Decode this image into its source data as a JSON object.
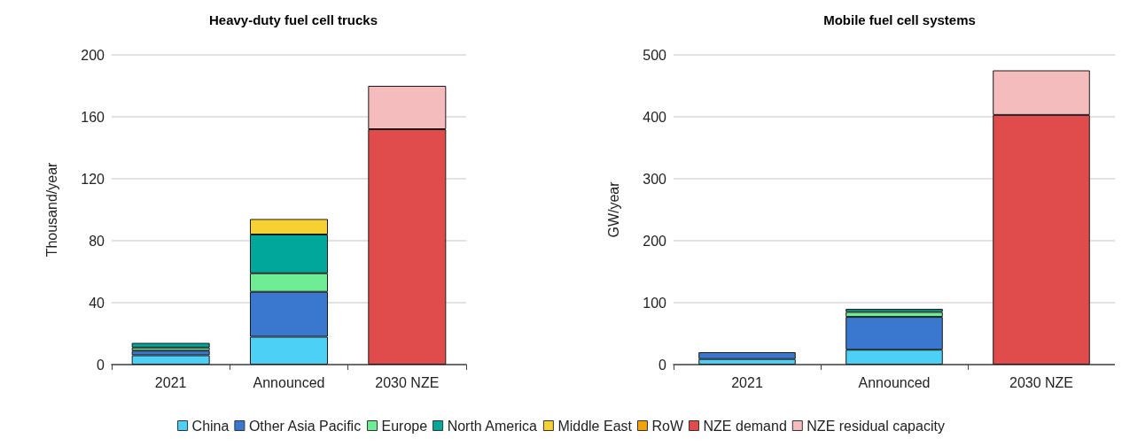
{
  "chart_data": [
    {
      "type": "bar",
      "title": "Heavy-duty fuel cell trucks",
      "ylabel": "Thousand/year",
      "categories": [
        "2021",
        "Announced",
        "2030 NZE"
      ],
      "stacked": true,
      "ylim": [
        0,
        200
      ],
      "yticks": [
        0,
        40,
        80,
        120,
        160,
        200
      ],
      "grid": "y",
      "legend": "bottom",
      "series": [
        {
          "name": "China",
          "color": "#4dd0f5",
          "values": [
            6,
            18,
            null
          ]
        },
        {
          "name": "Other Asia Pacific",
          "color": "#3a78d0",
          "values": [
            3,
            29,
            null
          ]
        },
        {
          "name": "Europe",
          "color": "#6fed95",
          "values": [
            2,
            12,
            null
          ]
        },
        {
          "name": "North America",
          "color": "#00a79a",
          "values": [
            3,
            25,
            null
          ]
        },
        {
          "name": "Middle East",
          "color": "#f7d031",
          "values": [
            null,
            10,
            null
          ]
        },
        {
          "name": "RoW",
          "color": "#f0a30a",
          "values": [
            null,
            null,
            null
          ]
        },
        {
          "name": "NZE demand",
          "color": "#e04b4b",
          "values": [
            null,
            null,
            152
          ]
        },
        {
          "name": "NZE residual capacity",
          "color": "#f4bcbc",
          "values": [
            null,
            null,
            28
          ]
        }
      ]
    },
    {
      "type": "bar",
      "title": "Mobile fuel cell systems",
      "ylabel": "GW/year",
      "categories": [
        "2021",
        "Announced",
        "2030 NZE"
      ],
      "stacked": true,
      "ylim": [
        0,
        500
      ],
      "yticks": [
        0,
        100,
        200,
        300,
        400,
        500
      ],
      "grid": "y",
      "legend": "bottom",
      "series": [
        {
          "name": "China",
          "color": "#4dd0f5",
          "values": [
            9,
            24,
            null
          ]
        },
        {
          "name": "Other Asia Pacific",
          "color": "#3a78d0",
          "values": [
            11,
            53,
            null
          ]
        },
        {
          "name": "Europe",
          "color": "#6fed95",
          "values": [
            null,
            8,
            null
          ]
        },
        {
          "name": "North America",
          "color": "#00a79a",
          "values": [
            null,
            5,
            null
          ]
        },
        {
          "name": "NZE demand",
          "color": "#e04b4b",
          "values": [
            null,
            null,
            403
          ]
        },
        {
          "name": "NZE residual capacity",
          "color": "#f4bcbc",
          "values": [
            null,
            null,
            72
          ]
        }
      ]
    }
  ]
}
